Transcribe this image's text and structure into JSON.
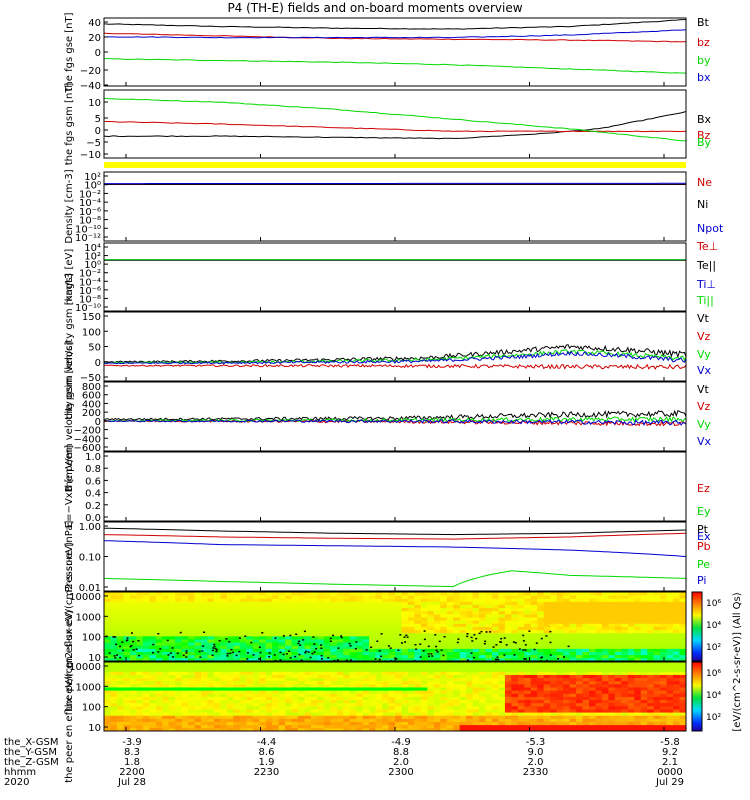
{
  "title": "P4 (TH-E) fields and on-board moments overview",
  "colors": {
    "black": "#000000",
    "red": "#d00000",
    "green": "#00d800",
    "blue": "#0000d0",
    "yellow": "#ffff00"
  },
  "chart_data": [
    {
      "type": "line",
      "panel": "fgs-gse",
      "ylabel": "the fgs gse [nT]",
      "yticks": [
        "40",
        "20",
        "0",
        "−20",
        "−40"
      ],
      "ylim": [
        -40,
        40
      ],
      "grid": false,
      "series": [
        {
          "name": "Bt",
          "color": "black",
          "t": [
            0,
            0.2,
            0.4,
            0.6,
            0.8,
            1.0
          ],
          "values": [
            33,
            30,
            28,
            27,
            30,
            38
          ]
        },
        {
          "name": "bz",
          "color": "red",
          "t": [
            0,
            0.2,
            0.4,
            0.6,
            0.8,
            1.0
          ],
          "values": [
            22,
            19,
            16,
            15,
            14,
            12
          ]
        },
        {
          "name": "by",
          "color": "green",
          "t": [
            0,
            0.2,
            0.4,
            0.6,
            0.8,
            1.0
          ],
          "values": [
            -8,
            -10,
            -12,
            -15,
            -20,
            -25
          ]
        },
        {
          "name": "bx",
          "color": "blue",
          "t": [
            0,
            0.2,
            0.4,
            0.6,
            0.8,
            1.0
          ],
          "values": [
            18,
            17,
            17,
            17,
            20,
            26
          ]
        }
      ]
    },
    {
      "type": "line",
      "panel": "fgs-gsm",
      "ylabel": "the fgs gsm [nT]",
      "yticks": [
        "10",
        "5",
        "0",
        "−5",
        "−10"
      ],
      "ylim": [
        -14,
        14
      ],
      "grid": false,
      "series": [
        {
          "name": "Bx",
          "color": "black",
          "t": [
            0,
            0.2,
            0.4,
            0.6,
            0.75,
            0.85,
            1.0
          ],
          "values": [
            -5,
            -5,
            -5.5,
            -6,
            -4,
            -2,
            5
          ]
        },
        {
          "name": "Bz",
          "color": "red",
          "t": [
            0,
            0.2,
            0.4,
            0.6,
            0.8,
            1.0
          ],
          "values": [
            1,
            0,
            -1.5,
            -3,
            -3,
            -3
          ]
        },
        {
          "name": "By",
          "color": "green",
          "t": [
            0,
            0.2,
            0.4,
            0.6,
            0.8,
            1.0
          ],
          "values": [
            10.5,
            9,
            6,
            2,
            -2,
            -7
          ]
        }
      ]
    },
    {
      "type": "line",
      "panel": "density",
      "ylabel": "Density [cm-3]",
      "yticks": [
        "10²",
        "10⁰",
        "10⁻²",
        "10⁻⁴",
        "10⁻⁶",
        "10⁻⁸",
        "10⁻¹⁰",
        "10⁻¹²"
      ],
      "ylim": [
        -12,
        2
      ],
      "log": true,
      "series": [
        {
          "name": "Ne",
          "color": "red",
          "t": [
            0,
            1
          ],
          "values": [
            0.3,
            0.3
          ]
        },
        {
          "name": "Ni",
          "color": "black",
          "t": [
            0,
            1
          ],
          "values": [
            0.3,
            0.3
          ]
        },
        {
          "name": "Npot",
          "color": "blue",
          "t": [
            0,
            1
          ],
          "values": [
            0.45,
            0.5
          ]
        }
      ]
    },
    {
      "type": "line",
      "panel": "temperature",
      "ylabel": "magt3 [eV]",
      "yticks": [
        "10⁴",
        "10²",
        "10⁰",
        "10⁻²",
        "10⁻⁴",
        "10⁻⁶",
        "10⁻⁸",
        "10⁻¹⁰"
      ],
      "ylim": [
        -10,
        4
      ],
      "log": true,
      "series": [
        {
          "name": "Te⊥",
          "color": "red",
          "t": [
            0,
            1
          ],
          "values": [
            2.7,
            2.7
          ]
        },
        {
          "name": "Te||",
          "color": "black",
          "t": [
            0,
            1
          ],
          "values": [
            2.8,
            2.8
          ]
        },
        {
          "name": "Ti⊥",
          "color": "blue",
          "t": [
            0,
            1
          ],
          "values": [
            3.5,
            3.6
          ]
        },
        {
          "name": "Ti||",
          "color": "green",
          "t": [
            0,
            1
          ],
          "values": [
            3.4,
            3.5
          ]
        }
      ]
    },
    {
      "type": "line",
      "panel": "peim-velocity",
      "ylabel": "the peim velocity gsm [km/s]",
      "yticks": [
        "150",
        "100",
        "50",
        "0",
        "−50"
      ],
      "ylim": [
        -50,
        160
      ],
      "noise": true,
      "series": [
        {
          "name": "Vt",
          "color": "black",
          "t": [
            0,
            0.3,
            0.55,
            0.7,
            0.8,
            0.9,
            1.0
          ],
          "values": [
            8,
            12,
            20,
            40,
            55,
            45,
            30
          ]
        },
        {
          "name": "Vz",
          "color": "red",
          "t": [
            0,
            0.5,
            1.0
          ],
          "values": [
            -3,
            -4,
            -8
          ]
        },
        {
          "name": "Vy",
          "color": "green",
          "t": [
            0,
            0.3,
            0.55,
            0.7,
            0.8,
            0.9,
            1.0
          ],
          "values": [
            5,
            8,
            14,
            28,
            40,
            30,
            18
          ]
        },
        {
          "name": "Vx",
          "color": "blue",
          "t": [
            0,
            0.3,
            0.55,
            0.7,
            0.8,
            0.9,
            1.0
          ],
          "values": [
            4,
            6,
            10,
            22,
            35,
            25,
            12
          ]
        }
      ]
    },
    {
      "type": "line",
      "panel": "peem-velocity",
      "ylabel": "the peem velocity gsm [km/s]",
      "yticks": [
        "800",
        "600",
        "400",
        "200",
        "0",
        "−200",
        "−400",
        "−600"
      ],
      "ylim": [
        -650,
        850
      ],
      "noise": true,
      "series": [
        {
          "name": "Vt",
          "color": "black",
          "t": [
            0,
            0.5,
            0.8,
            1.0
          ],
          "values": [
            40,
            60,
            140,
            160
          ]
        },
        {
          "name": "Vz",
          "color": "red",
          "t": [
            0,
            0.5,
            0.8,
            1.0
          ],
          "values": [
            0,
            -10,
            -40,
            -60
          ]
        },
        {
          "name": "Vy",
          "color": "green",
          "t": [
            0,
            0.5,
            0.8,
            1.0
          ],
          "values": [
            10,
            20,
            40,
            40
          ]
        },
        {
          "name": "Vx",
          "color": "blue",
          "t": [
            0,
            0.5,
            0.8,
            1.0
          ],
          "values": [
            0,
            0,
            -20,
            -40
          ]
        }
      ]
    },
    {
      "type": "line",
      "panel": "efield",
      "ylabel": "E=−VxB [mV/m]",
      "yticks": [
        "1.0",
        "0.8",
        "0.6",
        "0.4",
        "0.2",
        "0.0"
      ],
      "ylim": [
        0,
        1
      ],
      "series": [
        {
          "name": "Ez",
          "color": "red",
          "t": [],
          "values": []
        },
        {
          "name": "Ey",
          "color": "green",
          "t": [],
          "values": []
        },
        {
          "name": "Ex",
          "color": "blue",
          "t": [],
          "values": []
        }
      ]
    },
    {
      "type": "line",
      "panel": "pressure",
      "ylabel": "Pressure [nPa]",
      "yticks": [
        "1.00",
        "0.10",
        "0.01"
      ],
      "ylim": [
        -2.1,
        0.1
      ],
      "log": true,
      "series": [
        {
          "name": "Pt",
          "color": "black",
          "t": [
            0,
            0.2,
            0.4,
            0.6,
            0.8,
            1.0
          ],
          "values": [
            0.8,
            0.65,
            0.55,
            0.5,
            0.55,
            0.7
          ]
        },
        {
          "name": "Pb",
          "color": "red",
          "t": [
            0,
            0.2,
            0.4,
            0.6,
            0.8,
            1.0
          ],
          "values": [
            0.5,
            0.42,
            0.38,
            0.36,
            0.42,
            0.55
          ]
        },
        {
          "name": "Pe",
          "color": "green",
          "t": [
            0,
            0.2,
            0.4,
            0.6,
            0.7,
            0.8,
            1.0
          ],
          "values": [
            0.02,
            0.016,
            0.013,
            0.011,
            0.035,
            0.025,
            0.02
          ]
        },
        {
          "name": "Pi",
          "color": "blue",
          "t": [
            0,
            0.2,
            0.4,
            0.6,
            0.8,
            1.0
          ],
          "values": [
            0.32,
            0.24,
            0.22,
            0.2,
            0.16,
            0.1
          ]
        }
      ]
    },
    {
      "type": "heatmap",
      "panel": "peir-spectrogram",
      "ylabel": "the peir en eflux eV/(cm2-s-sr-eV)",
      "yticks": [
        "10000",
        "1000",
        "100",
        "10"
      ],
      "ylim": [
        5,
        25000
      ],
      "log": true
    },
    {
      "type": "heatmap",
      "panel": "peer-spectrogram",
      "ylabel": "the peer en eflux eV/(cm2-s-sr-eV)",
      "yticks": [
        "10000",
        "1000",
        "100",
        "10"
      ],
      "ylim": [
        5,
        25000
      ],
      "log": true
    }
  ],
  "legend_labels": {
    "fgs_gse": [
      "Bt",
      "bz",
      "by",
      "bx"
    ],
    "fgs_gsm": [
      "Bx",
      "Bz",
      "By"
    ],
    "density": [
      "Ne",
      "Ni",
      "Npot"
    ],
    "temperature": [
      "Te⊥",
      "Te||",
      "Ti⊥",
      "Ti||"
    ],
    "peim": [
      "Vt",
      "Vz",
      "Vy",
      "Vx"
    ],
    "peem": [
      "Vt",
      "Vz",
      "Vy",
      "Vx"
    ],
    "efield": [
      "Ez",
      "Ey",
      "Ex"
    ],
    "pressure": [
      "Pt",
      "Pb",
      "Pe",
      "Pi"
    ]
  },
  "colorbar": {
    "label": "[eV/(cm^2-s-sr-eV)] (All Qs)",
    "ticks_top": [
      "10⁶",
      "10⁴",
      "10²"
    ],
    "ticks_bottom": [
      "10⁶",
      "10⁴",
      "10²"
    ]
  },
  "x_axis": {
    "row_labels": [
      "the_X-GSM",
      "the_Y-GSM",
      "the_Z-GSM",
      "hhmm",
      "2020"
    ],
    "ticks": [
      {
        "x": "-3.9",
        "y": "8.3",
        "z": "1.8",
        "hhmm": "2200",
        "date": "Jul 28"
      },
      {
        "x": "-4.4",
        "y": "8.6",
        "z": "1.9",
        "hhmm": "2230",
        "date": ""
      },
      {
        "x": "-4.9",
        "y": "8.8",
        "z": "2.0",
        "hhmm": "2300",
        "date": ""
      },
      {
        "x": "-5.3",
        "y": "9.0",
        "z": "2.0",
        "hhmm": "2330",
        "date": ""
      },
      {
        "x": "-5.8",
        "y": "9.2",
        "z": "2.1",
        "hhmm": "0000",
        "date": "Jul 29"
      }
    ]
  }
}
